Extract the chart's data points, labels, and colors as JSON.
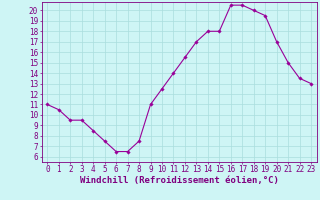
{
  "x": [
    0,
    1,
    2,
    3,
    4,
    5,
    6,
    7,
    8,
    9,
    10,
    11,
    12,
    13,
    14,
    15,
    16,
    17,
    18,
    19,
    20,
    21,
    22,
    23
  ],
  "y": [
    11,
    10.5,
    9.5,
    9.5,
    8.5,
    7.5,
    6.5,
    6.5,
    7.5,
    11,
    12.5,
    14,
    15.5,
    17,
    18,
    18,
    20.5,
    20.5,
    20,
    19.5,
    17,
    15,
    13.5,
    13
  ],
  "line_color": "#990099",
  "marker": "D",
  "marker_size": 1.8,
  "bg_color": "#cef5f5",
  "grid_color": "#aadddd",
  "xlabel": "Windchill (Refroidissement éolien,°C)",
  "xlabel_color": "#800080",
  "xlabel_fontsize": 6.5,
  "xlim": [
    -0.5,
    23.5
  ],
  "ylim": [
    5.5,
    20.8
  ],
  "yticks": [
    6,
    7,
    8,
    9,
    10,
    11,
    12,
    13,
    14,
    15,
    16,
    17,
    18,
    19,
    20
  ],
  "xticks": [
    0,
    1,
    2,
    3,
    4,
    5,
    6,
    7,
    8,
    9,
    10,
    11,
    12,
    13,
    14,
    15,
    16,
    17,
    18,
    19,
    20,
    21,
    22,
    23
  ],
  "tick_fontsize": 5.5,
  "tick_color": "#800080",
  "spine_color": "#800080",
  "axis_bg_color": "#cef5f5",
  "linewidth": 0.8
}
